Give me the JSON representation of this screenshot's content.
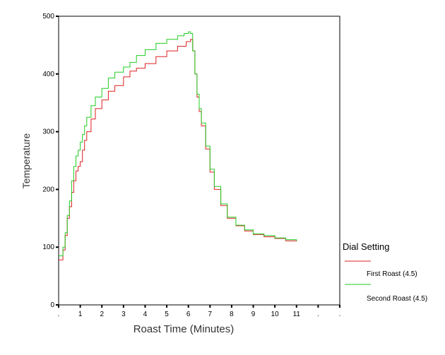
{
  "chart_data": {
    "type": "line",
    "title": "",
    "xlabel": "Roast Time (Minutes)",
    "ylabel": "Temperature",
    "xlim": [
      0,
      13
    ],
    "ylim": [
      0,
      500
    ],
    "x_ticks": [
      0,
      1,
      2,
      3,
      4,
      5,
      6,
      7,
      8,
      9,
      10,
      11,
      12,
      13
    ],
    "x_tick_labels": [
      ".",
      "1",
      "2",
      "3",
      "4",
      "5",
      "6",
      "7",
      "8",
      "9",
      "10",
      "11",
      ".",
      "."
    ],
    "y_ticks": [
      0,
      100,
      200,
      300,
      400,
      500
    ],
    "y_tick_labels": [
      "0",
      "100",
      "200",
      "300",
      "400",
      "500"
    ],
    "grid": false,
    "legend": {
      "title": "Dial Setting",
      "placement": "right"
    },
    "series": [
      {
        "name": "First Roast (4.5)",
        "color": "#dd2020",
        "x": [
          0.0,
          0.2,
          0.3,
          0.4,
          0.5,
          0.6,
          0.7,
          0.8,
          0.9,
          1.0,
          1.1,
          1.2,
          1.3,
          1.5,
          1.7,
          2.0,
          2.3,
          2.6,
          3.0,
          3.3,
          3.6,
          4.0,
          4.5,
          5.0,
          5.5,
          5.9,
          6.1,
          6.2,
          6.3,
          6.4,
          6.5,
          6.6,
          6.8,
          7.0,
          7.2,
          7.5,
          7.8,
          8.2,
          8.6,
          9.0,
          9.5,
          10.0,
          10.5,
          11.0
        ],
        "y": [
          78,
          95,
          120,
          150,
          170,
          195,
          215,
          232,
          240,
          248,
          268,
          285,
          300,
          322,
          340,
          355,
          370,
          380,
          395,
          405,
          410,
          418,
          430,
          440,
          448,
          456,
          460,
          440,
          400,
          360,
          335,
          310,
          270,
          230,
          200,
          172,
          150,
          137,
          128,
          122,
          118,
          115,
          111,
          110
        ]
      },
      {
        "name": "Second Roast (4.5)",
        "color": "#22cc22",
        "x": [
          0.0,
          0.2,
          0.3,
          0.4,
          0.5,
          0.6,
          0.7,
          0.8,
          0.9,
          1.0,
          1.1,
          1.2,
          1.3,
          1.5,
          1.7,
          2.0,
          2.3,
          2.6,
          3.0,
          3.3,
          3.6,
          4.0,
          4.5,
          5.0,
          5.5,
          5.8,
          6.0,
          6.1,
          6.2,
          6.3,
          6.4,
          6.5,
          6.6,
          6.8,
          7.0,
          7.2,
          7.5,
          7.8,
          8.2,
          8.6,
          9.0,
          9.5,
          10.0,
          10.5,
          11.0
        ],
        "y": [
          85,
          100,
          125,
          155,
          180,
          215,
          240,
          258,
          268,
          282,
          295,
          310,
          325,
          345,
          360,
          375,
          393,
          403,
          412,
          420,
          432,
          442,
          453,
          460,
          466,
          470,
          473,
          470,
          440,
          400,
          365,
          340,
          315,
          275,
          235,
          205,
          175,
          152,
          138,
          130,
          123,
          120,
          116,
          113,
          111
        ]
      }
    ]
  }
}
